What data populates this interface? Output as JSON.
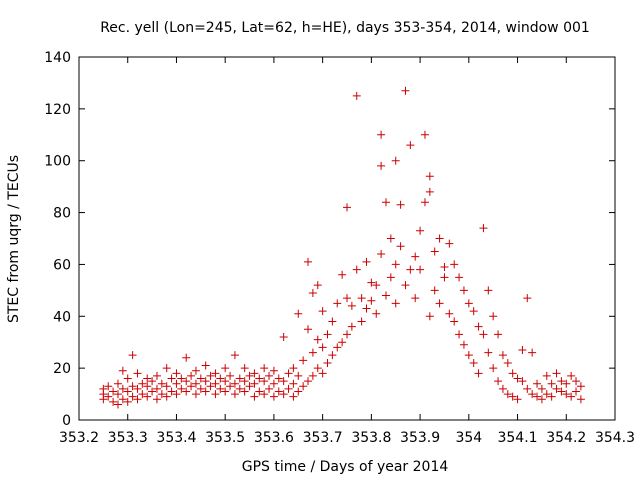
{
  "chart_data": {
    "type": "scatter",
    "title": "Rec. yell (Lon=245, Lat=62, h=HE), days 353-354, 2014, window 001",
    "xlabel": "GPS time / Days of year 2014",
    "ylabel": "STEC from uqrg / TECUs",
    "xlim": [
      353.2,
      354.3
    ],
    "ylim": [
      0,
      140
    ],
    "x_ticks": [
      "353.2",
      "353.3",
      "353.4",
      "353.5",
      "353.6",
      "353.7",
      "353.8",
      "353.9",
      "354",
      "354.1",
      "354.2",
      "354.3"
    ],
    "y_ticks": [
      "0",
      "20",
      "40",
      "60",
      "80",
      "100",
      "120",
      "140"
    ],
    "grid": false,
    "marker": "+",
    "color": "#cc0000",
    "series": [
      {
        "points": [
          [
            353.25,
            8
          ],
          [
            353.25,
            10
          ],
          [
            353.25,
            12
          ],
          [
            353.26,
            9
          ],
          [
            353.26,
            13
          ],
          [
            353.27,
            7
          ],
          [
            353.27,
            11
          ],
          [
            353.28,
            6
          ],
          [
            353.28,
            10
          ],
          [
            353.28,
            14
          ],
          [
            353.29,
            8
          ],
          [
            353.29,
            12
          ],
          [
            353.29,
            19
          ],
          [
            353.3,
            7
          ],
          [
            353.3,
            11
          ],
          [
            353.3,
            16
          ],
          [
            353.31,
            9
          ],
          [
            353.31,
            13
          ],
          [
            353.31,
            25
          ],
          [
            353.32,
            8
          ],
          [
            353.32,
            12
          ],
          [
            353.32,
            18
          ],
          [
            353.33,
            10
          ],
          [
            353.33,
            14
          ],
          [
            353.34,
            9
          ],
          [
            353.34,
            13
          ],
          [
            353.34,
            16
          ],
          [
            353.35,
            11
          ],
          [
            353.35,
            15
          ],
          [
            353.36,
            8
          ],
          [
            353.36,
            12
          ],
          [
            353.36,
            17
          ],
          [
            353.37,
            10
          ],
          [
            353.37,
            14
          ],
          [
            353.38,
            9
          ],
          [
            353.38,
            13
          ],
          [
            353.38,
            20
          ],
          [
            353.39,
            11
          ],
          [
            353.39,
            16
          ],
          [
            353.4,
            10
          ],
          [
            353.4,
            14
          ],
          [
            353.4,
            18
          ],
          [
            353.41,
            12
          ],
          [
            353.41,
            16
          ],
          [
            353.42,
            11
          ],
          [
            353.42,
            15
          ],
          [
            353.42,
            24
          ],
          [
            353.43,
            13
          ],
          [
            353.43,
            17
          ],
          [
            353.44,
            10
          ],
          [
            353.44,
            14
          ],
          [
            353.44,
            19
          ],
          [
            353.45,
            12
          ],
          [
            353.45,
            16
          ],
          [
            353.46,
            11
          ],
          [
            353.46,
            15
          ],
          [
            353.46,
            21
          ],
          [
            353.47,
            13
          ],
          [
            353.47,
            17
          ],
          [
            353.48,
            10
          ],
          [
            353.48,
            14
          ],
          [
            353.48,
            18
          ],
          [
            353.49,
            12
          ],
          [
            353.49,
            16
          ],
          [
            353.5,
            11
          ],
          [
            353.5,
            15
          ],
          [
            353.5,
            20
          ],
          [
            353.51,
            13
          ],
          [
            353.51,
            17
          ],
          [
            353.52,
            10
          ],
          [
            353.52,
            14
          ],
          [
            353.52,
            25
          ],
          [
            353.53,
            12
          ],
          [
            353.53,
            16
          ],
          [
            353.54,
            11
          ],
          [
            353.54,
            15
          ],
          [
            353.54,
            20
          ],
          [
            353.55,
            13
          ],
          [
            353.55,
            17
          ],
          [
            353.56,
            9
          ],
          [
            353.56,
            14
          ],
          [
            353.56,
            18
          ],
          [
            353.57,
            11
          ],
          [
            353.57,
            16
          ],
          [
            353.58,
            10
          ],
          [
            353.58,
            15
          ],
          [
            353.58,
            20
          ],
          [
            353.59,
            12
          ],
          [
            353.59,
            17
          ],
          [
            353.6,
            9
          ],
          [
            353.6,
            14
          ],
          [
            353.6,
            19
          ],
          [
            353.61,
            11
          ],
          [
            353.61,
            16
          ],
          [
            353.62,
            10
          ],
          [
            353.62,
            15
          ],
          [
            353.62,
            32
          ],
          [
            353.63,
            12
          ],
          [
            353.63,
            18
          ],
          [
            353.64,
            9
          ],
          [
            353.64,
            14
          ],
          [
            353.64,
            20
          ],
          [
            353.65,
            11
          ],
          [
            353.65,
            17
          ],
          [
            353.65,
            41
          ],
          [
            353.66,
            13
          ],
          [
            353.66,
            23
          ],
          [
            353.67,
            15
          ],
          [
            353.67,
            35
          ],
          [
            353.67,
            61
          ],
          [
            353.68,
            17
          ],
          [
            353.68,
            26
          ],
          [
            353.68,
            49
          ],
          [
            353.69,
            20
          ],
          [
            353.69,
            31
          ],
          [
            353.69,
            52
          ],
          [
            353.7,
            18
          ],
          [
            353.7,
            28
          ],
          [
            353.7,
            42
          ],
          [
            353.71,
            22
          ],
          [
            353.71,
            33
          ],
          [
            353.72,
            25
          ],
          [
            353.72,
            38
          ],
          [
            353.73,
            28
          ],
          [
            353.73,
            45
          ],
          [
            353.74,
            30
          ],
          [
            353.74,
            56
          ],
          [
            353.75,
            33
          ],
          [
            353.75,
            47
          ],
          [
            353.75,
            82
          ],
          [
            353.76,
            36
          ],
          [
            353.76,
            44
          ],
          [
            353.77,
            125
          ],
          [
            353.77,
            58
          ],
          [
            353.78,
            38
          ],
          [
            353.78,
            47
          ],
          [
            353.79,
            43
          ],
          [
            353.79,
            61
          ],
          [
            353.8,
            46
          ],
          [
            353.8,
            53
          ],
          [
            353.81,
            41
          ],
          [
            353.81,
            52
          ],
          [
            353.82,
            98
          ],
          [
            353.82,
            110
          ],
          [
            353.82,
            64
          ],
          [
            353.83,
            48
          ],
          [
            353.83,
            84
          ],
          [
            353.84,
            55
          ],
          [
            353.84,
            70
          ],
          [
            353.85,
            60
          ],
          [
            353.85,
            100
          ],
          [
            353.85,
            45
          ],
          [
            353.86,
            67
          ],
          [
            353.86,
            83
          ],
          [
            353.87,
            127
          ],
          [
            353.87,
            52
          ],
          [
            353.88,
            106
          ],
          [
            353.88,
            58
          ],
          [
            353.89,
            47
          ],
          [
            353.89,
            63
          ],
          [
            353.9,
            73
          ],
          [
            353.9,
            58
          ],
          [
            353.91,
            110
          ],
          [
            353.91,
            84
          ],
          [
            353.92,
            94
          ],
          [
            353.92,
            88
          ],
          [
            353.92,
            40
          ],
          [
            353.93,
            65
          ],
          [
            353.93,
            50
          ],
          [
            353.94,
            70
          ],
          [
            353.94,
            45
          ],
          [
            353.95,
            59
          ],
          [
            353.95,
            55
          ],
          [
            353.96,
            68
          ],
          [
            353.96,
            41
          ],
          [
            353.97,
            60
          ],
          [
            353.97,
            38
          ],
          [
            353.98,
            55
          ],
          [
            353.98,
            33
          ],
          [
            353.99,
            50
          ],
          [
            353.99,
            29
          ],
          [
            354,
            45
          ],
          [
            354,
            25
          ],
          [
            354.01,
            42
          ],
          [
            354.01,
            22
          ],
          [
            354.02,
            36
          ],
          [
            354.02,
            18
          ],
          [
            354.03,
            33
          ],
          [
            354.03,
            74
          ],
          [
            354.04,
            26
          ],
          [
            354.04,
            50
          ],
          [
            354.05,
            40
          ],
          [
            354.05,
            20
          ],
          [
            354.06,
            33
          ],
          [
            354.06,
            15
          ],
          [
            354.07,
            25
          ],
          [
            354.07,
            12
          ],
          [
            354.08,
            22
          ],
          [
            354.08,
            10
          ],
          [
            354.09,
            18
          ],
          [
            354.09,
            9
          ],
          [
            354.1,
            16
          ],
          [
            354.1,
            8
          ],
          [
            354.11,
            27
          ],
          [
            354.11,
            15
          ],
          [
            354.12,
            12
          ],
          [
            354.12,
            47
          ],
          [
            354.13,
            10
          ],
          [
            354.13,
            26
          ],
          [
            354.14,
            14
          ],
          [
            354.14,
            9
          ],
          [
            354.15,
            12
          ],
          [
            354.15,
            8
          ],
          [
            354.16,
            17
          ],
          [
            354.16,
            10
          ],
          [
            354.17,
            14
          ],
          [
            354.17,
            9
          ],
          [
            354.18,
            12
          ],
          [
            354.18,
            18
          ],
          [
            354.19,
            11
          ],
          [
            354.19,
            15
          ],
          [
            354.2,
            10
          ],
          [
            354.2,
            14
          ],
          [
            354.21,
            9
          ],
          [
            354.21,
            17
          ],
          [
            354.22,
            11
          ],
          [
            354.22,
            15
          ],
          [
            354.23,
            8
          ],
          [
            354.23,
            13
          ]
        ]
      }
    ]
  }
}
